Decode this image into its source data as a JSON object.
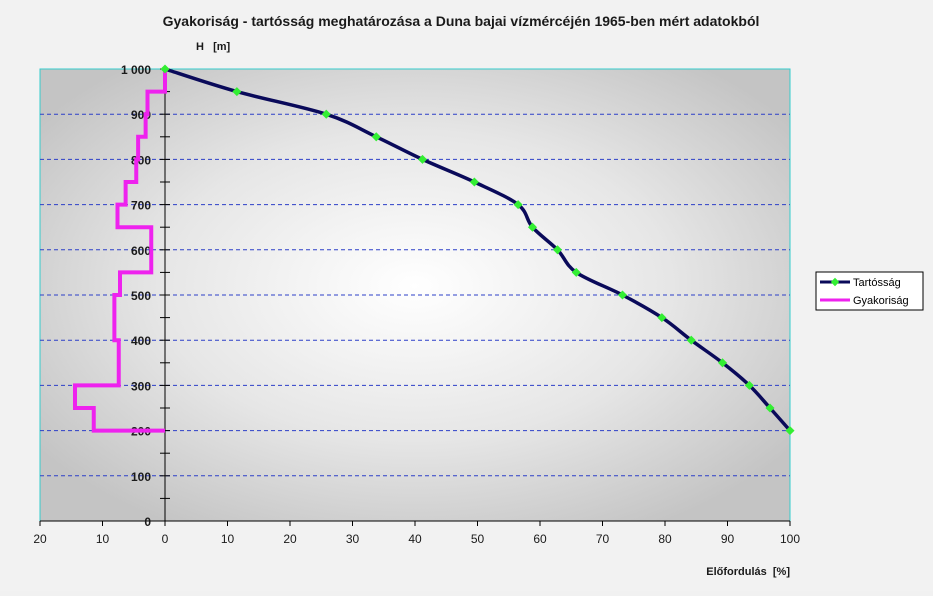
{
  "chart_data": {
    "type": "line",
    "title": "Gyakoriság - tartósság meghatározása a Duna bajai vízmércéjén 1965-ben mért adatokból",
    "ylabel": "H   [m]",
    "xlabel": "Előfordulás  [%]",
    "xlim": [
      -20,
      100
    ],
    "ylim": [
      0,
      1000
    ],
    "x_ticks": [
      -20,
      -10,
      0,
      10,
      20,
      30,
      40,
      50,
      60,
      70,
      80,
      90,
      100
    ],
    "x_tick_labels": [
      "20",
      "10",
      "0",
      "10",
      "20",
      "30",
      "40",
      "50",
      "60",
      "70",
      "80",
      "90",
      "100"
    ],
    "y_ticks": [
      0,
      100,
      200,
      300,
      400,
      500,
      600,
      700,
      800,
      900,
      1000
    ],
    "y_tick_labels": [
      "0",
      "100",
      "200",
      "300",
      "400",
      "500",
      "600",
      "700",
      "800",
      "900",
      "1 000"
    ],
    "grid": "horizontal dashed",
    "legend_position": "right",
    "series": [
      {
        "name": "Tartósság",
        "color": "#0a0a5a",
        "marker_color": "#33ee33",
        "x": [
          0,
          11.5,
          25.8,
          33.8,
          41.2,
          49.5,
          56.5,
          58.8,
          62.8,
          65.8,
          73.2,
          79.5,
          84.2,
          89.2,
          93.5,
          96.8,
          100
        ],
        "y": [
          1000,
          950,
          900,
          850,
          800,
          750,
          700,
          650,
          600,
          550,
          500,
          450,
          400,
          350,
          300,
          250,
          200
        ]
      },
      {
        "name": "Gyakoriság",
        "color": "#ee22ee",
        "step": true,
        "x_percent": [
          0,
          2.8,
          3.1,
          4.3,
          4.6,
          6.3,
          7.6,
          2.2,
          7.2,
          8.1,
          7.4,
          14.4,
          11.4,
          0
        ],
        "y": [
          1000,
          950,
          900,
          850,
          800,
          750,
          700,
          650,
          550,
          500,
          400,
          300,
          250,
          200
        ]
      }
    ]
  }
}
